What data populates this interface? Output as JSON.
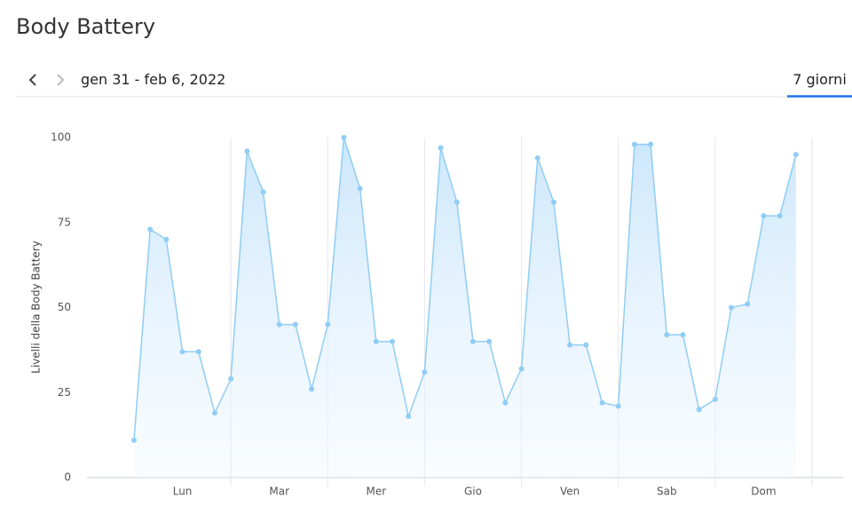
{
  "header": {
    "title": "Body Battery",
    "date_range": "gen 31 - feb 6, 2022",
    "tab": "7 giorni"
  },
  "chart_data": {
    "type": "area",
    "y_label": "Livelli della Body Battery",
    "x": [
      0,
      4,
      8,
      12,
      16,
      20,
      24,
      28,
      32,
      36,
      40,
      44,
      48,
      52,
      56,
      60,
      64,
      68,
      72,
      76,
      80,
      84,
      88,
      92,
      96,
      100,
      104,
      108,
      112,
      116,
      120,
      124,
      128,
      132,
      136,
      140,
      144,
      148,
      152,
      156,
      160,
      164
    ],
    "series": [
      {
        "color": "#90cdf4",
        "values": [
          11,
          73,
          70,
          37,
          37,
          19,
          29,
          96,
          84,
          45,
          45,
          26,
          45,
          100,
          85,
          40,
          40,
          18,
          31,
          97,
          81,
          40,
          40,
          22,
          32,
          94,
          81,
          39,
          39,
          22,
          21,
          98,
          98,
          42,
          42,
          20,
          23,
          50,
          51,
          77,
          77,
          95
        ]
      }
    ],
    "xlim": [
      0,
      168
    ],
    "xticks": [
      {
        "value": 12,
        "label": "Lun"
      },
      {
        "value": 36,
        "label": "Mar"
      },
      {
        "value": 60,
        "label": "Mer"
      },
      {
        "value": 84,
        "label": "Gio"
      },
      {
        "value": 108,
        "label": "Ven"
      },
      {
        "value": 132,
        "label": "Sab"
      },
      {
        "value": 156,
        "label": "Dom"
      }
    ],
    "ylim": [
      0,
      100
    ],
    "yticks": [
      0,
      25,
      50,
      75,
      100
    ]
  }
}
